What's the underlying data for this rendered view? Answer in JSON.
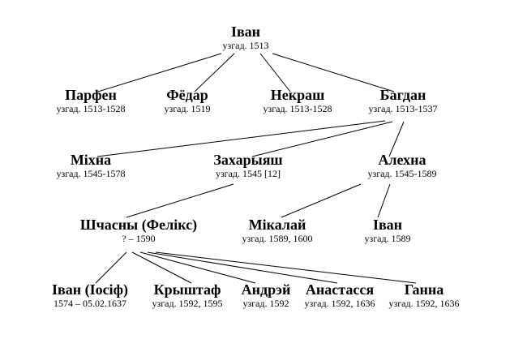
{
  "tree": {
    "people": [
      {
        "id": "ivan-root",
        "name": "Іван",
        "dates": "узгад. 1513"
      },
      {
        "id": "parfen",
        "name": "Парфен",
        "dates": "узгад. 1513-1528"
      },
      {
        "id": "fiodar",
        "name": "Фёдар",
        "dates": "узгад. 1519"
      },
      {
        "id": "nekrash",
        "name": "Некраш",
        "dates": "узгад. 1513-1528"
      },
      {
        "id": "bahdan",
        "name": "Багдан",
        "dates": "узгад. 1513-1537"
      },
      {
        "id": "mikhna",
        "name": "Міхна",
        "dates": "узгад. 1545-1578"
      },
      {
        "id": "zakharyash",
        "name": "Захарыяш",
        "dates": "узгад. 1545 [12]"
      },
      {
        "id": "alekhna",
        "name": "Алехна",
        "dates": "узгад. 1545-1589"
      },
      {
        "id": "shchasny",
        "name": "Шчасны (Фелікс)",
        "dates": "? – 1590"
      },
      {
        "id": "mikalai",
        "name": "Мікалай",
        "dates": "узгад. 1589, 1600"
      },
      {
        "id": "ivan-alekhna",
        "name": "Іван",
        "dates": "узгад. 1589"
      },
      {
        "id": "ivan-iosif",
        "name": "Іван (Іосіф)",
        "dates": "1574 – 05.02.1637"
      },
      {
        "id": "kryshtaf",
        "name": "Крыштаф",
        "dates": "узгад. 1592, 1595"
      },
      {
        "id": "andrei",
        "name": "Андрэй",
        "dates": "узгад. 1592"
      },
      {
        "id": "anastasia",
        "name": "Анастасся",
        "dates": "узгад. 1592, 1636"
      },
      {
        "id": "hanna",
        "name": "Ганна",
        "dates": "узгад. 1592, 1636"
      }
    ],
    "links": [
      {
        "from": "ivan-root",
        "to": "parfen"
      },
      {
        "from": "ivan-root",
        "to": "fiodar"
      },
      {
        "from": "ivan-root",
        "to": "nekrash"
      },
      {
        "from": "ivan-root",
        "to": "bahdan"
      },
      {
        "from": "bahdan",
        "to": "mikhna"
      },
      {
        "from": "bahdan",
        "to": "zakharyash"
      },
      {
        "from": "bahdan",
        "to": "alekhna"
      },
      {
        "from": "zakharyash",
        "to": "shchasny"
      },
      {
        "from": "alekhna",
        "to": "mikalai"
      },
      {
        "from": "alekhna",
        "to": "ivan-alekhna"
      },
      {
        "from": "shchasny",
        "to": "ivan-iosif"
      },
      {
        "from": "shchasny",
        "to": "kryshtaf"
      },
      {
        "from": "shchasny",
        "to": "andrei"
      },
      {
        "from": "shchasny",
        "to": "anastasia"
      },
      {
        "from": "shchasny",
        "to": "hanna"
      }
    ]
  }
}
